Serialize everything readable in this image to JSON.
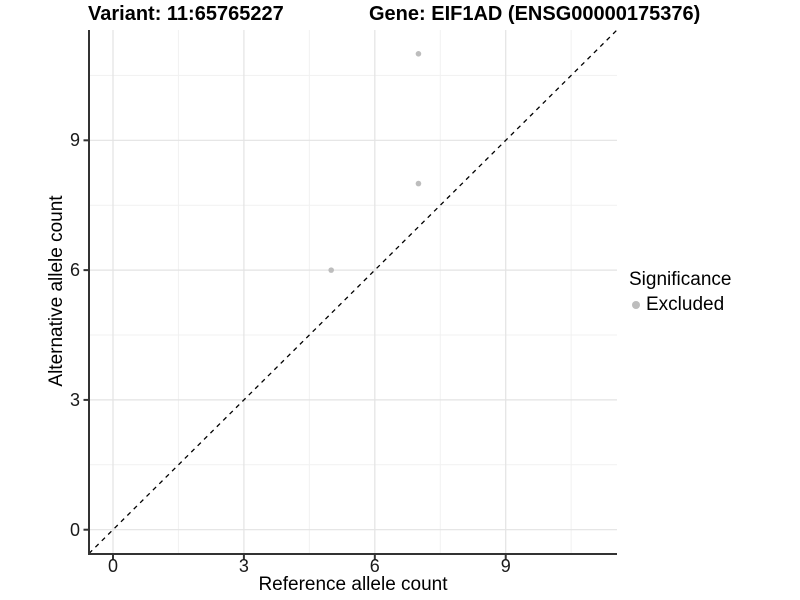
{
  "chart_data": {
    "type": "scatter",
    "titles": {
      "left": "Variant: 11:65765227",
      "right": "Gene: EIF1AD (ENSG00000175376)"
    },
    "xlabel": "Reference allele count",
    "ylabel": "Alternative allele count",
    "xlim": [
      -0.55,
      11.55
    ],
    "ylim": [
      -0.55,
      11.55
    ],
    "xticks": [
      0,
      3,
      6,
      9
    ],
    "yticks": [
      0,
      3,
      6,
      9
    ],
    "minor_gridlines": [
      1.5,
      4.5,
      7.5,
      10.5
    ],
    "grid": "major and minor, light gray on white",
    "identity_line": {
      "equation": "y = x",
      "style": "dashed",
      "color": "#000000"
    },
    "series": [
      {
        "name": "Excluded",
        "color": "#bdbdbd",
        "marker": "circle",
        "points": [
          [
            7,
            11
          ],
          [
            7,
            8
          ],
          [
            5,
            6
          ]
        ]
      }
    ],
    "legend": {
      "title": "Significance",
      "position": "right",
      "items": [
        {
          "label": "Excluded",
          "color": "#bdbdbd",
          "marker": "circle"
        }
      ]
    }
  },
  "colors": {
    "background": "#ffffff",
    "grid_major": "#e3e3e3",
    "grid_minor": "#f1f1f1",
    "axis_line": "#333333",
    "tick_text": "#1a1a1a",
    "title_text": "#000000",
    "point": "#bdbdbd"
  }
}
